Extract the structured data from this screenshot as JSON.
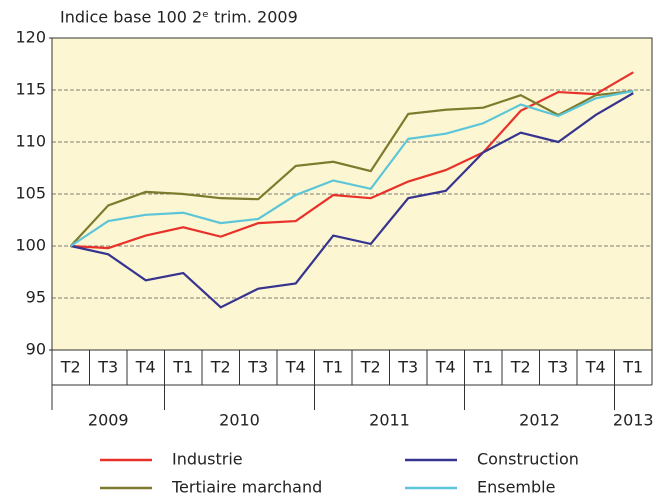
{
  "chart_data": {
    "type": "line",
    "title": "Indice base 100 2ᵉ trim. 2009",
    "categories": [
      "T2",
      "T3",
      "T4",
      "T1",
      "T2",
      "T3",
      "T4",
      "T1",
      "T2",
      "T3",
      "T4",
      "T1",
      "T2",
      "T3",
      "T4",
      "T1"
    ],
    "groups": [
      {
        "label": "2009",
        "size": 3
      },
      {
        "label": "2010",
        "size": 4
      },
      {
        "label": "2011",
        "size": 4
      },
      {
        "label": "2012",
        "size": 4
      },
      {
        "label": "2013",
        "size": 1
      }
    ],
    "series": [
      {
        "name": "Industrie",
        "color": "#e8312a",
        "values": [
          100,
          99.8,
          101,
          101.8,
          100.9,
          102.2,
          102.4,
          104.9,
          104.6,
          106.2,
          107.3,
          109,
          113,
          114.8,
          114.6,
          116.7
        ]
      },
      {
        "name": "Construction",
        "color": "#36348f",
        "values": [
          100,
          99.2,
          96.7,
          97.4,
          94.1,
          95.9,
          96.4,
          101,
          100.2,
          104.6,
          105.3,
          109,
          110.9,
          110,
          112.6,
          114.7
        ]
      },
      {
        "name": "Tertiaire marchand",
        "color": "#7d7b2e",
        "values": [
          100,
          103.9,
          105.2,
          105,
          104.6,
          104.5,
          107.7,
          108.1,
          107.2,
          112.7,
          113.1,
          113.3,
          114.5,
          112.6,
          114.5,
          114.9
        ]
      },
      {
        "name": "Ensemble",
        "color": "#5cc6d8",
        "values": [
          100,
          102.4,
          103,
          103.2,
          102.2,
          102.6,
          104.9,
          106.3,
          105.5,
          110.3,
          110.8,
          111.8,
          113.6,
          112.5,
          114.2,
          114.9
        ]
      }
    ],
    "ylim": [
      90,
      120
    ],
    "yticks": [
      90,
      95,
      100,
      105,
      110,
      115,
      120
    ],
    "grid": true
  }
}
